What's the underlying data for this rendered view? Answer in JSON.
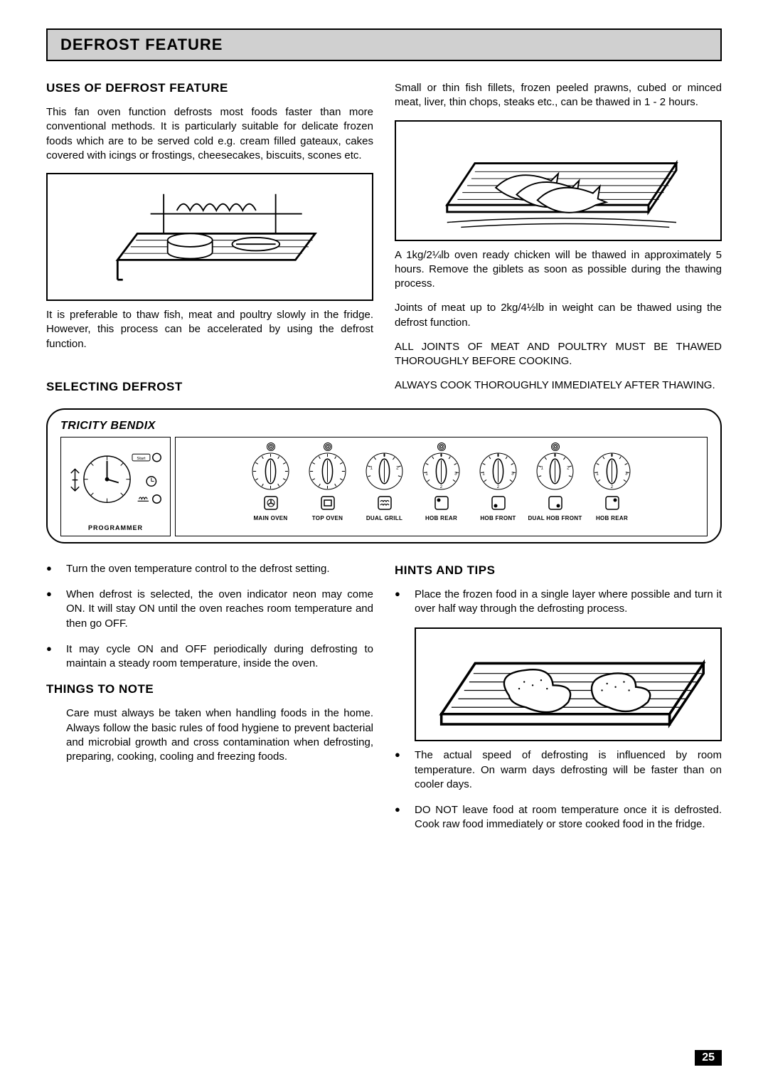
{
  "mainTitle": "DEFROST FEATURE",
  "pageNumber": "25",
  "brand": "TRICITY BENDIX",
  "left": {
    "usesTitle": "USES OF DEFROST FEATURE",
    "usesPara": "This fan oven function defrosts most foods faster than more conventional methods. It is particularly suitable for delicate frozen foods which are to be served cold e.g. cream filled gateaux, cakes covered with icings or frostings, cheesecakes, biscuits, scones etc.",
    "afterImgPara": "It is preferable to thaw fish, meat and poultry slowly in the fridge. However, this process can be accelerated by using the defrost function.",
    "selectingTitle": "SELECTING  DEFROST"
  },
  "right": {
    "p1": "Small or thin fish fillets, frozen peeled prawns, cubed or minced meat, liver, thin chops, steaks etc., can be thawed in 1 - 2 hours.",
    "p2": "A 1kg/2¼lb oven ready chicken will be thawed in approximately 5 hours. Remove the giblets as soon as possible during the thawing process.",
    "p3": "Joints of meat up to 2kg/4½lb in weight can be thawed using the defrost function.",
    "p4": "ALL JOINTS OF MEAT AND POULTRY MUST BE THAWED THOROUGHLY BEFORE COOKING.",
    "p5": "ALWAYS COOK THOROUGHLY IMMEDIATELY AFTER THAWING."
  },
  "controls": {
    "programmer": "PROGRAMMER",
    "dials": [
      {
        "label": "MAIN OVEN",
        "burner": true
      },
      {
        "label": "TOP OVEN",
        "burner": true
      },
      {
        "label": "DUAL GRILL",
        "burner": false
      },
      {
        "label": "HOB REAR",
        "burner": true
      },
      {
        "label": "HOB FRONT",
        "burner": false
      },
      {
        "label": "DUAL HOB FRONT",
        "burner": true
      },
      {
        "label": "HOB REAR",
        "burner": false
      }
    ]
  },
  "bulletsLeft": [
    "Turn the oven temperature control to the defrost setting.",
    "When defrost is selected, the oven indicator neon may come ON. It will stay ON until the oven reaches room temperature and then go OFF.",
    "It may cycle ON and OFF periodically during defrosting to maintain a steady room temperature, inside the oven."
  ],
  "thingsTitle": "THINGS TO NOTE",
  "thingsPara": "Care must always be taken when handling foods in the home. Always follow the basic rules of food hygiene to prevent bacterial and microbial growth and cross contamination when defrosting, preparing, cooking, cooling and freezing foods.",
  "hintsTitle": "HINTS AND TIPS",
  "hintsBullets1": [
    "Place the frozen food in a single layer where possible and turn it over half way through the defrosting process."
  ],
  "hintsBullets2": [
    "The actual speed of defrosting is influenced by room temperature. On warm days defrosting will be faster than on cooler days.",
    "DO NOT leave food at room temperature once it is defrosted.  Cook raw food immediately or store cooked food in the fridge."
  ]
}
